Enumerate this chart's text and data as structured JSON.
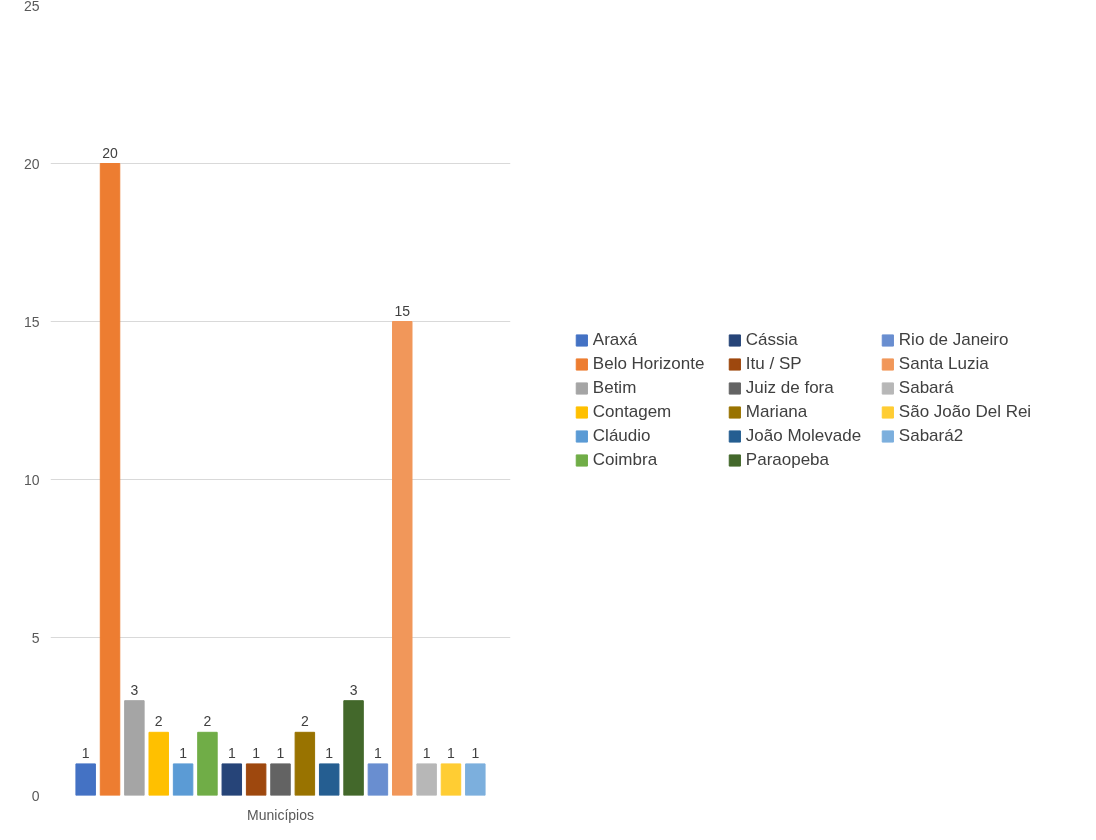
{
  "chart_data": {
    "type": "bar",
    "categories": [
      "Municípios"
    ],
    "ylim": [
      0,
      25
    ],
    "yticks": [
      0,
      5,
      10,
      15,
      20,
      25
    ],
    "grid": "y",
    "legend": "right",
    "data_labels": true,
    "series": [
      {
        "name": "Araxá",
        "color": "#4472c4",
        "values": [
          1
        ]
      },
      {
        "name": "Belo Horizonte",
        "color": "#ed7d31",
        "values": [
          20
        ]
      },
      {
        "name": "Betim",
        "color": "#a5a5a5",
        "values": [
          3
        ]
      },
      {
        "name": "Contagem",
        "color": "#ffc000",
        "values": [
          2
        ]
      },
      {
        "name": "Cláudio",
        "color": "#5b9bd5",
        "values": [
          1
        ]
      },
      {
        "name": "Coimbra",
        "color": "#70ad47",
        "values": [
          2
        ]
      },
      {
        "name": "Cássia",
        "color": "#264478",
        "values": [
          1
        ]
      },
      {
        "name": "Itu / SP",
        "color": "#9e480e",
        "values": [
          1
        ]
      },
      {
        "name": "Juiz de fora",
        "color": "#636363",
        "values": [
          1
        ]
      },
      {
        "name": "Mariana",
        "color": "#997300",
        "values": [
          2
        ]
      },
      {
        "name": "João Molevade",
        "color": "#255e91",
        "values": [
          1
        ]
      },
      {
        "name": "Paraopeba",
        "color": "#43682b",
        "values": [
          3
        ]
      },
      {
        "name": "Rio de Janeiro",
        "color": "#698ed0",
        "values": [
          1
        ]
      },
      {
        "name": "Santa Luzia",
        "color": "#f1975a",
        "values": [
          15
        ]
      },
      {
        "name": "Sabará",
        "color": "#b7b7b7",
        "values": [
          1
        ]
      },
      {
        "name": "São João Del Rei",
        "color": "#ffcd33",
        "values": [
          1
        ]
      },
      {
        "name": "Sabará2",
        "color": "#7cafdd",
        "values": [
          1
        ]
      }
    ]
  }
}
